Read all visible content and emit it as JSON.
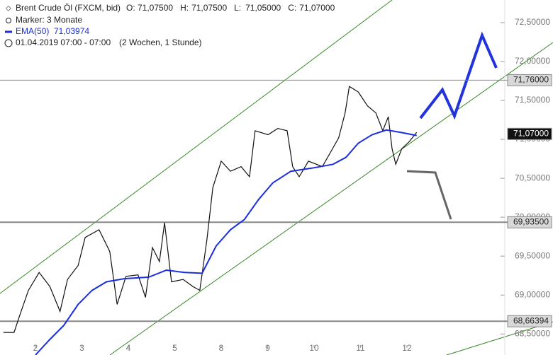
{
  "chart_data": {
    "type": "line",
    "header": {
      "instrument": "Brent Crude Öl (FXCM, bid)",
      "ohlc": [
        {
          "label": "O:",
          "value": "71,07500"
        },
        {
          "label": "H:",
          "value": "71,07500"
        },
        {
          "label": "L:",
          "value": "71,05000"
        },
        {
          "label": "C:",
          "value": "71,07000"
        }
      ],
      "marker": "Marker: 3 Monate",
      "ema_label": "EMA(50)",
      "ema_value": "71,03974",
      "period": "01.04.2019 07:00 - 07:00",
      "interval": "(2 Wochen, 1 Stunde)"
    },
    "xlim": [
      0.237,
      12.146
    ],
    "xticks": [
      {
        "value": 1,
        "label": "2"
      },
      {
        "value": 2,
        "label": "3"
      },
      {
        "value": 3,
        "label": "4"
      },
      {
        "value": 4,
        "label": "5"
      },
      {
        "value": 5,
        "label": "8"
      },
      {
        "value": 6,
        "label": "9"
      },
      {
        "value": 7,
        "label": "10"
      },
      {
        "value": 8,
        "label": "11"
      },
      {
        "value": 9,
        "label": "12"
      }
    ],
    "ylim": [
      68.23,
      72.79
    ],
    "yticks": [
      {
        "value": 68.5,
        "label": "68,50000"
      },
      {
        "value": 69,
        "label": "69,00000"
      },
      {
        "value": 69.5,
        "label": "69,50000"
      },
      {
        "value": 70,
        "label": "70,00000"
      },
      {
        "value": 70.5,
        "label": "70,50000"
      },
      {
        "value": 71,
        "label": "71,00000"
      },
      {
        "value": 71.5,
        "label": "71,50000"
      },
      {
        "value": 72,
        "label": "72,00000"
      },
      {
        "value": 72.5,
        "label": "72,50000"
      }
    ],
    "levels": [
      {
        "value": 71.76,
        "label": "71,76000",
        "color": "#888888"
      },
      {
        "value": 69.935,
        "label": "69,93500",
        "color": "#888888"
      },
      {
        "value": 68.66394,
        "label": "68,66394",
        "color": "#888888"
      }
    ],
    "current": {
      "value": 71.07,
      "label": "71,07000"
    },
    "series": [
      {
        "name": "Brent Crude Öl",
        "color": "#111111",
        "x": [
          0.31,
          0.54,
          0.69,
          0.85,
          1.08,
          1.31,
          1.53,
          1.69,
          1.92,
          2.07,
          2.37,
          2.6,
          2.76,
          2.95,
          3.21,
          3.37,
          3.52,
          3.67,
          3.78,
          3.93,
          4.18,
          4.39,
          4.54,
          4.69,
          4.82,
          5.0,
          5.2,
          5.43,
          5.61,
          5.73,
          6.01,
          6.22,
          6.42,
          6.54,
          6.68,
          6.88,
          7.18,
          7.38,
          7.53,
          7.67,
          7.76,
          7.95,
          8.15,
          8.33,
          8.48,
          8.6,
          8.68,
          8.76,
          8.89,
          9.05,
          9.21
        ],
        "values": [
          68.52,
          68.52,
          68.79,
          69.06,
          69.29,
          69.11,
          68.79,
          69.2,
          69.38,
          69.74,
          69.84,
          69.56,
          68.88,
          69.24,
          69.26,
          68.97,
          69.61,
          69.43,
          69.93,
          69.17,
          69.2,
          69.11,
          69.06,
          69.7,
          70.38,
          70.72,
          70.59,
          70.65,
          70.52,
          71.11,
          71.06,
          71.14,
          71.11,
          70.65,
          70.52,
          70.72,
          70.65,
          70.86,
          71.02,
          71.34,
          71.68,
          71.61,
          71.43,
          71.34,
          71.11,
          71.29,
          70.88,
          70.68,
          70.88,
          70.97,
          71.09
        ]
      },
      {
        "name": "EMA(50)",
        "color": "#1a2ee0",
        "x": [
          1.0,
          1.31,
          1.61,
          1.92,
          2.22,
          2.53,
          2.91,
          3.44,
          3.82,
          4.21,
          4.59,
          4.89,
          5.2,
          5.5,
          5.81,
          6.11,
          6.5,
          6.95,
          7.41,
          7.69,
          7.95,
          8.25,
          8.56,
          8.86,
          9.21
        ],
        "values": [
          68.23,
          68.43,
          68.61,
          68.88,
          69.06,
          69.17,
          69.21,
          69.23,
          69.32,
          69.29,
          69.28,
          69.63,
          69.84,
          69.97,
          70.23,
          70.44,
          70.59,
          70.63,
          70.68,
          70.77,
          70.95,
          71.06,
          71.12,
          71.09,
          71.05
        ]
      }
    ]
  }
}
